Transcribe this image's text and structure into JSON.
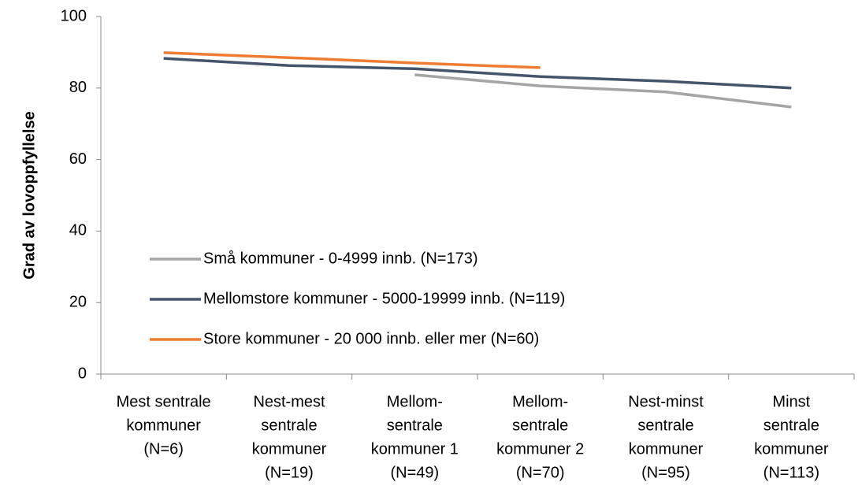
{
  "chart_data": {
    "type": "line",
    "ylabel": "Grad av lovoppfyllelse",
    "categories": [
      [
        "Mest sentrale",
        "kommuner",
        "(N=6)"
      ],
      [
        "Nest-mest",
        "sentrale",
        "kommuner",
        "(N=19)"
      ],
      [
        "Mellom-",
        "sentrale",
        "kommuner 1",
        "(N=49)"
      ],
      [
        "Mellom-",
        "sentrale",
        "kommuner 2",
        "(N=70)"
      ],
      [
        "Nest-minst",
        "sentrale",
        "kommuner",
        "(N=95)"
      ],
      [
        "Minst",
        "sentrale",
        "kommuner",
        "(N=113)"
      ]
    ],
    "series": [
      {
        "name": "Små kommuner - 0-4999 innb. (N=173)",
        "color": "#a5a5a5",
        "values": [
          null,
          null,
          83.7,
          80.6,
          78.9,
          74.7
        ]
      },
      {
        "name": "Mellomstore kommuner - 5000-19999 innb. (N=119)",
        "color": "#44546a",
        "values": [
          88.3,
          86.3,
          85.4,
          83.2,
          81.9,
          80
        ]
      },
      {
        "name": "Store kommuner - 20 000 innb. eller mer (N=60)",
        "color": "#ed7d31",
        "values": [
          89.9,
          88.5,
          87,
          85.7,
          null,
          null
        ]
      }
    ],
    "ylim": [
      0,
      100
    ],
    "yticks": [
      0,
      20,
      40,
      60,
      80,
      100
    ],
    "legend": "lower left"
  }
}
